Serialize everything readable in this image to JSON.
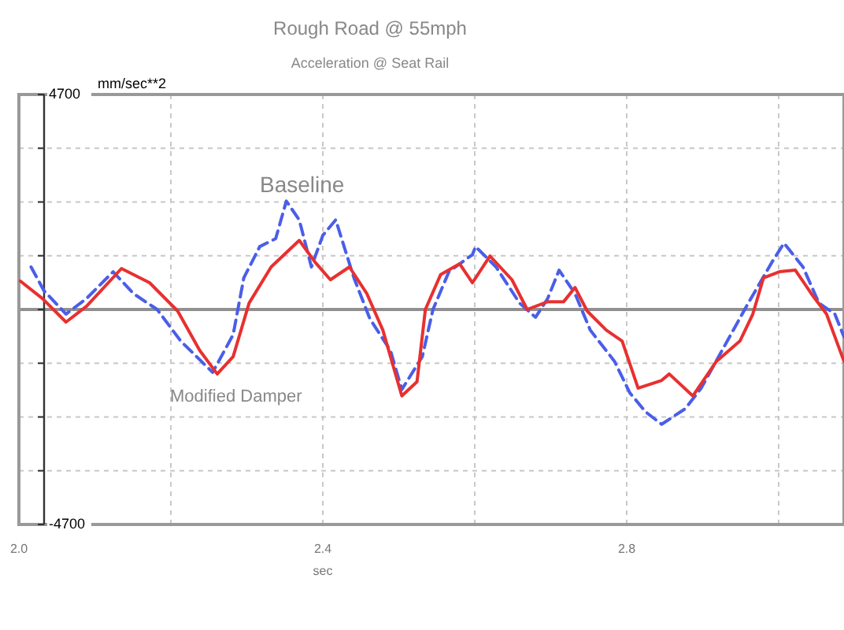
{
  "chart_data": {
    "type": "line",
    "title": "Rough Road @ 55mph",
    "subtitle": "Acceleration @ Seat Rail",
    "ylabel": "mm/sec**2",
    "xlabel": "sec",
    "xlim": [
      2.0,
      3.086
    ],
    "ylim": [
      -4700,
      4700
    ],
    "xticks": [
      {
        "value": 2.0,
        "label": "2.0"
      },
      {
        "value": 2.2,
        "label": null
      },
      {
        "value": 2.4,
        "label": "2.4"
      },
      {
        "value": 2.6,
        "label": null
      },
      {
        "value": 2.8,
        "label": "2.8"
      },
      {
        "value": 3.0,
        "label": null
      }
    ],
    "yticks": [
      {
        "value": -4700,
        "label": "-4700"
      },
      {
        "value": -3525,
        "label": null
      },
      {
        "value": -2350,
        "label": null
      },
      {
        "value": -1175,
        "label": null
      },
      {
        "value": 0,
        "label": null
      },
      {
        "value": 1175,
        "label": null
      },
      {
        "value": 2350,
        "label": null
      },
      {
        "value": 3525,
        "label": null
      },
      {
        "value": 4700,
        "label": "4700"
      }
    ],
    "grid": true,
    "legend": false,
    "marker": "none",
    "ref_lines": [
      {
        "axis": "y",
        "value": 0,
        "color": "#909090"
      }
    ],
    "series": [
      {
        "name": "Baseline",
        "color": "#4a5ee8",
        "line_style": "dashed",
        "x": [
          2.016,
          2.033,
          2.062,
          2.089,
          2.124,
          2.151,
          2.182,
          2.213,
          2.255,
          2.282,
          2.296,
          2.317,
          2.338,
          2.352,
          2.369,
          2.385,
          2.4,
          2.417,
          2.441,
          2.462,
          2.489,
          2.504,
          2.531,
          2.545,
          2.566,
          2.597,
          2.601,
          2.628,
          2.659,
          2.68,
          2.696,
          2.711,
          2.732,
          2.752,
          2.784,
          2.804,
          2.825,
          2.846,
          2.877,
          2.898,
          2.929,
          2.96,
          2.991,
          3.007,
          3.032,
          3.053,
          3.074,
          3.086
        ],
        "values": [
          930,
          410,
          -100,
          240,
          825,
          345,
          0,
          -690,
          -1375,
          -550,
          690,
          1375,
          1550,
          2370,
          1960,
          930,
          1620,
          1960,
          690,
          -205,
          -895,
          -1750,
          -1030,
          0,
          825,
          1200,
          1375,
          930,
          140,
          -170,
          240,
          860,
          345,
          -450,
          -1135,
          -1820,
          -2240,
          -2510,
          -2170,
          -1720,
          -790,
          140,
          1030,
          1450,
          930,
          140,
          -100,
          -600
        ]
      },
      {
        "name": "Modified Damper",
        "color": "#e83030",
        "line_style": "solid",
        "x": [
          2.002,
          2.031,
          2.062,
          2.089,
          2.135,
          2.172,
          2.209,
          2.238,
          2.261,
          2.282,
          2.303,
          2.332,
          2.369,
          2.39,
          2.41,
          2.435,
          2.458,
          2.479,
          2.504,
          2.524,
          2.535,
          2.555,
          2.58,
          2.597,
          2.62,
          2.649,
          2.669,
          2.696,
          2.717,
          2.732,
          2.748,
          2.773,
          2.794,
          2.815,
          2.846,
          2.856,
          2.887,
          2.918,
          2.949,
          2.966,
          2.98,
          3.001,
          3.022,
          3.043,
          3.063,
          3.086
        ],
        "values": [
          620,
          240,
          -275,
          70,
          895,
          585,
          -35,
          -895,
          -1410,
          -1030,
          140,
          930,
          1510,
          1030,
          650,
          930,
          345,
          -450,
          -1890,
          -1580,
          0,
          760,
          1000,
          585,
          1170,
          650,
          0,
          170,
          170,
          480,
          -35,
          -450,
          -690,
          -1720,
          -1550,
          -1410,
          -1890,
          -1135,
          -690,
          -100,
          690,
          825,
          860,
          345,
          -100,
          -1135
        ]
      }
    ]
  }
}
